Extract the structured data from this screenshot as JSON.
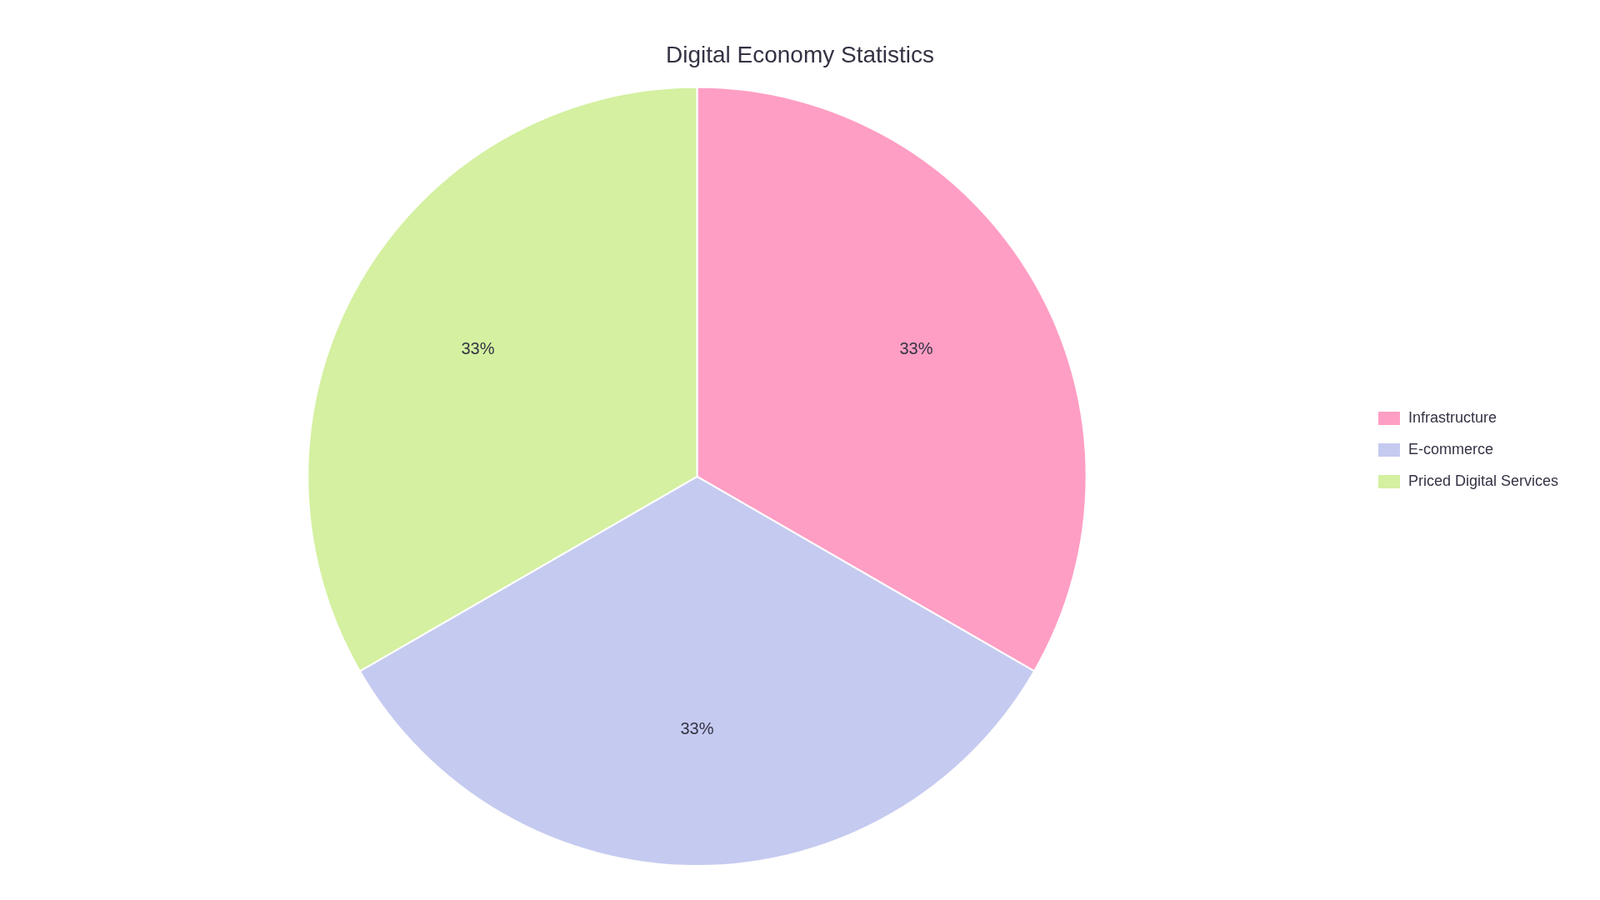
{
  "chart_data": {
    "type": "pie",
    "title": "Digital Economy Statistics",
    "categories": [
      "Infrastructure",
      "E-commerce",
      "Priced Digital Services"
    ],
    "values": [
      33,
      33,
      33
    ],
    "value_labels": [
      "33%",
      "33%",
      "33%"
    ],
    "colors": [
      "#FF9EC4",
      "#C5CAF0",
      "#D4F0A0"
    ],
    "data_labels": true,
    "legend": "right"
  }
}
